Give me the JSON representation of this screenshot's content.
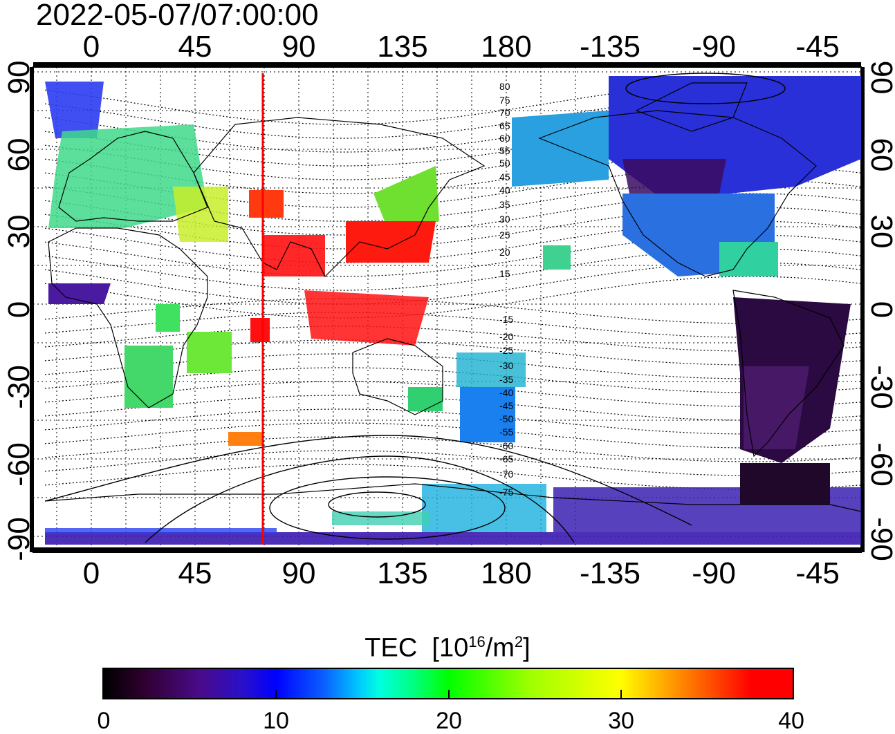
{
  "timestamp": "2022-05-07/07:00:00",
  "map": {
    "top_ticks": [
      "0",
      "45",
      "90",
      "135",
      "180",
      "-135",
      "-90",
      "-45"
    ],
    "bottom_ticks": [
      "0",
      "45",
      "90",
      "135",
      "180",
      "-135",
      "-90",
      "-45"
    ],
    "left_ticks": [
      "90",
      "60",
      "30",
      "0",
      "-30",
      "-60",
      "-90"
    ],
    "right_ticks": [
      "90",
      "60",
      "30",
      "0",
      "-30",
      "-60",
      "-90"
    ],
    "magnetic_lat_labels_north": [
      "80",
      "75",
      "70",
      "65",
      "60",
      "55",
      "50",
      "45",
      "40",
      "35",
      "30",
      "25",
      "20",
      "15"
    ],
    "magnetic_lat_labels_south": [
      "-15",
      "-20",
      "-25",
      "-30",
      "-35",
      "-40",
      "-45",
      "-50",
      "-55",
      "-60",
      "-65",
      "-70",
      "-75"
    ],
    "subsolar_line_longitude": 75,
    "subsolar_line_color": "#ff0000"
  },
  "colorbar": {
    "title": "TEC",
    "unit_prefix": "[10",
    "unit_exp1": "16",
    "unit_mid": "/m",
    "unit_exp2": "2",
    "unit_suffix": "]",
    "labels": [
      "0",
      "10",
      "20",
      "30",
      "40"
    ],
    "range": [
      0,
      40
    ]
  }
}
